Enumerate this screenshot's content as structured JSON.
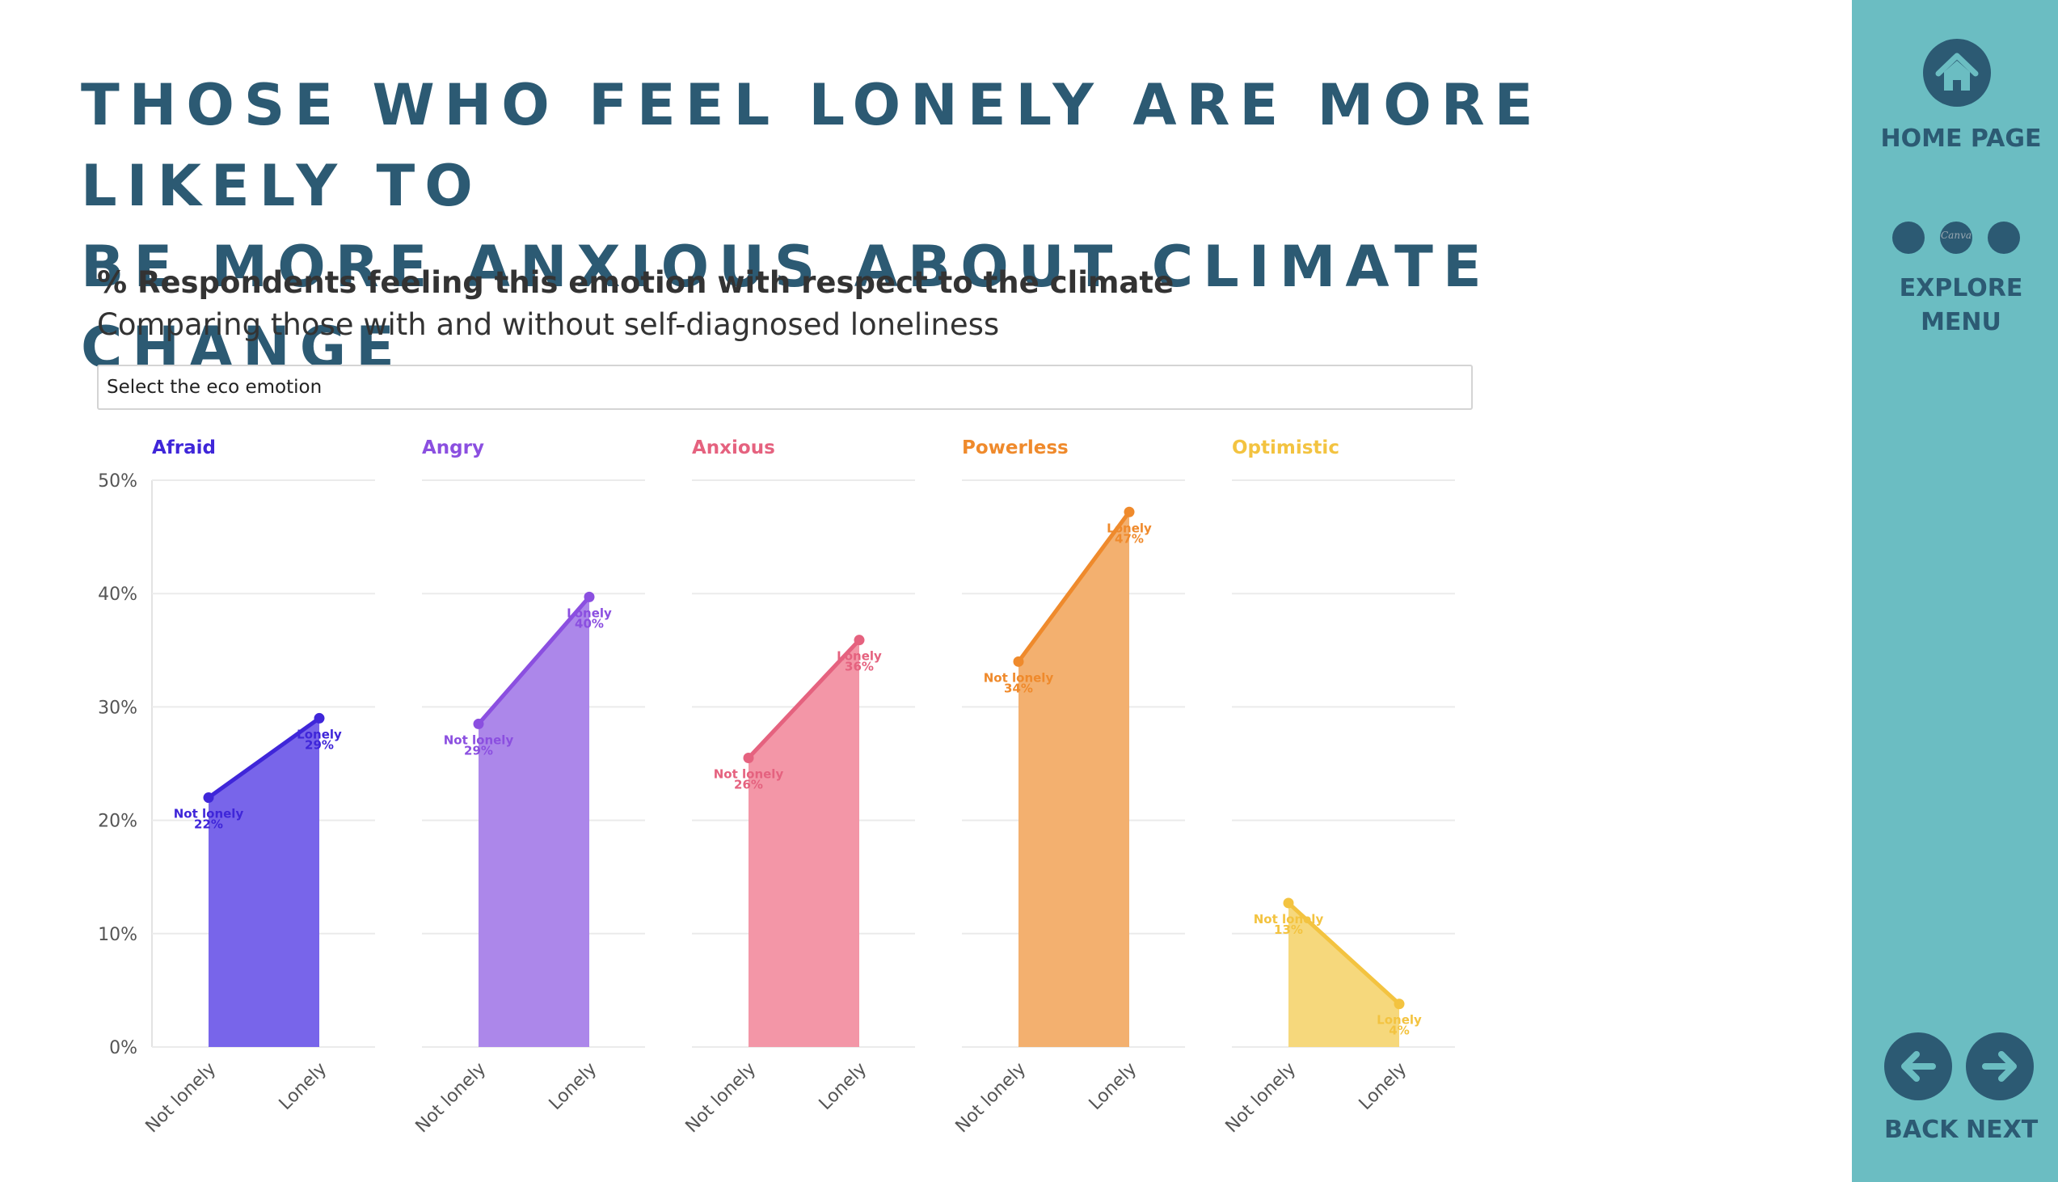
{
  "page": {
    "title_line1": "THOSE WHO FEEL LONELY ARE MORE LIKELY TO",
    "title_line2": "BE MORE ANXIOUS ABOUT CLIMATE CHANGE"
  },
  "filter": {
    "label": "Select the eco emotion"
  },
  "sidebar": {
    "home_label": "HOME PAGE",
    "explore_label_line1": "EXPLORE",
    "explore_label_line2": "MENU",
    "canva_text": "Canva",
    "back_label": "BACK",
    "next_label": "NEXT",
    "icons": {
      "home": "home-icon",
      "back": "arrow-left-icon",
      "next": "arrow-right-icon"
    }
  },
  "chart_data": {
    "type": "area",
    "title": "% Respondents feeling this emotion with respect to the climate",
    "subtitle": "Comparing those with and without self-diagnosed loneliness",
    "categories": [
      "Not lonely",
      "Lonely"
    ],
    "y_ticks": [
      "0%",
      "10%",
      "20%",
      "30%",
      "40%",
      "50%"
    ],
    "ylim": [
      0,
      50
    ],
    "grid": true,
    "panels": [
      {
        "name": "Afraid",
        "color": "#3f26d9",
        "fill": "#7865ea",
        "values": [
          22,
          29
        ],
        "labels": [
          "22%",
          "29%"
        ]
      },
      {
        "name": "Angry",
        "color": "#8b4fe0",
        "fill": "#ac87ea",
        "values": [
          28.5,
          39.7
        ],
        "labels": [
          "29%",
          "40%"
        ]
      },
      {
        "name": "Anxious",
        "color": "#e5627f",
        "fill": "#f396a7",
        "values": [
          25.5,
          35.9
        ],
        "labels": [
          "26%",
          "36%"
        ]
      },
      {
        "name": "Powerless",
        "color": "#ef8a2c",
        "fill": "#f3b06f",
        "values": [
          34,
          47.2
        ],
        "labels": [
          "34%",
          "47%"
        ]
      },
      {
        "name": "Optimistic",
        "color": "#f3c340",
        "fill": "#f6d87c",
        "values": [
          12.7,
          3.8
        ],
        "labels": [
          "13%",
          "4%"
        ]
      }
    ]
  }
}
